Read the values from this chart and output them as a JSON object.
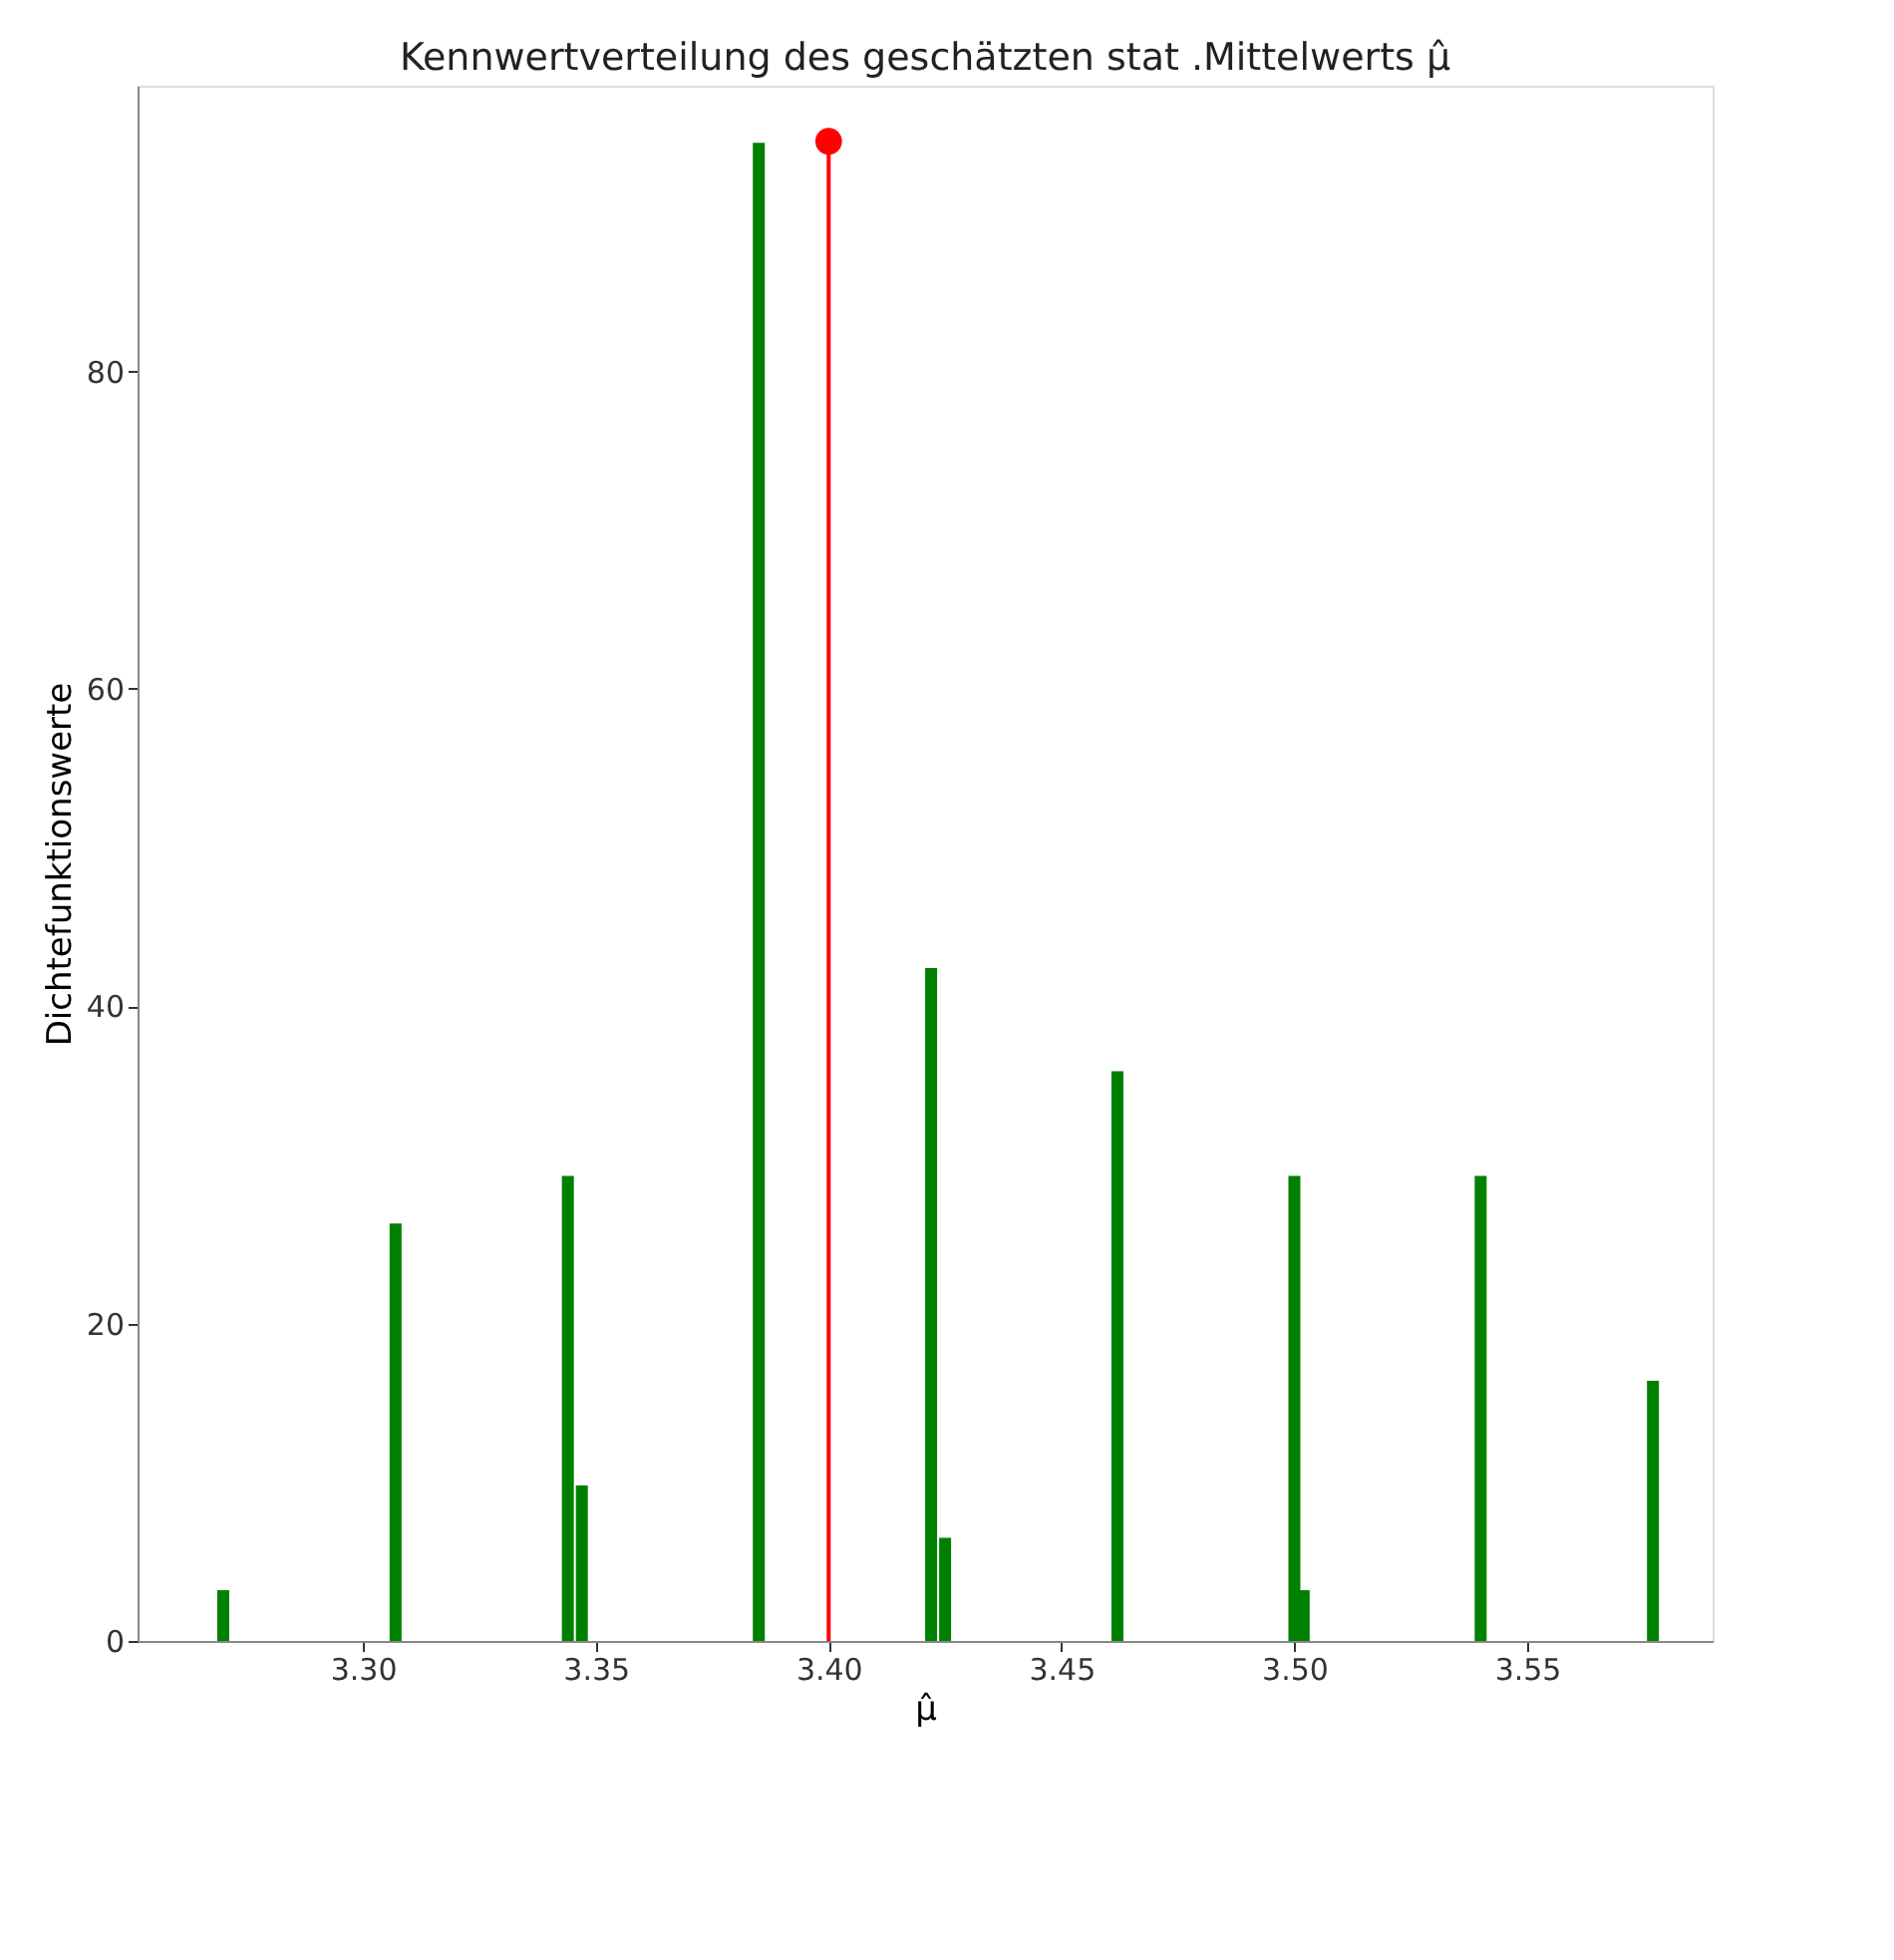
{
  "chart_data": {
    "type": "bar",
    "title": "Kennwertverteilung des geschätzten stat .Mittelwerts μ̂",
    "xlabel": "μ̂",
    "ylabel": "Dichtefunktionswerte",
    "xlim": [
      3.2516,
      3.5898
    ],
    "ylim": [
      0,
      98
    ],
    "xticks": [
      {
        "value": 3.3,
        "label": "3.30"
      },
      3.35,
      {
        "value": 3.4,
        "label": "3.40"
      },
      3.45,
      {
        "value": 3.5,
        "label": "3.50"
      },
      3.55
    ],
    "yticks": [
      0,
      20,
      40,
      60,
      80
    ],
    "grid": false,
    "series": [
      {
        "color": "#008000",
        "x": [
          3.27,
          3.307,
          3.344,
          3.347,
          3.385,
          3.422,
          3.425,
          3.462,
          3.5,
          3.502,
          3.54,
          3.577
        ],
        "values": [
          3.2,
          26.3,
          29.3,
          9.8,
          94.4,
          42.4,
          6.5,
          35.9,
          29.3,
          3.2,
          29.3,
          16.4
        ]
      },
      {
        "type": "lollipop",
        "color": "#ff0000",
        "x": [
          3.4
        ],
        "values": [
          94.5
        ]
      }
    ]
  }
}
